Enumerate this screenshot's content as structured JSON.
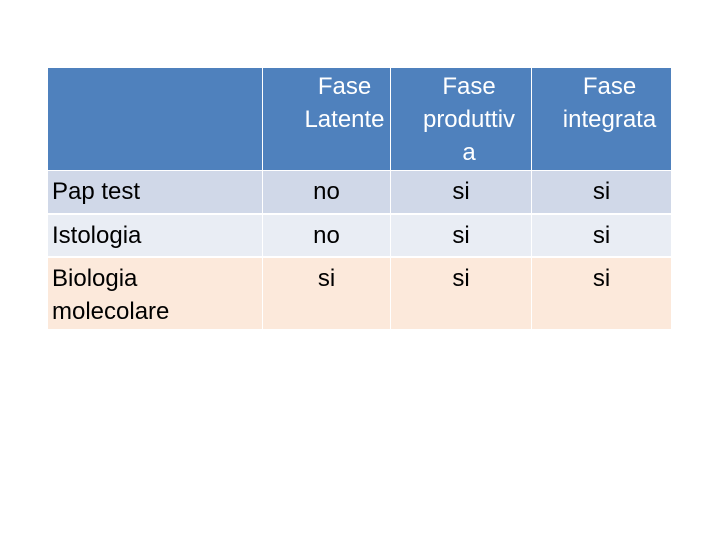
{
  "table": {
    "headers": [
      "",
      "Fase Latente",
      "Fase produttiv a",
      "Fase integrata"
    ],
    "header_lines": [
      [],
      [
        "Fase",
        "Latente"
      ],
      [
        "Fase",
        "produttiv",
        "a"
      ],
      [
        "Fase",
        "integrata"
      ]
    ],
    "rows": [
      {
        "label": "Pap test",
        "values": [
          "no",
          "si",
          "si"
        ]
      },
      {
        "label": "Istologia",
        "values": [
          "no",
          "si",
          "si"
        ]
      },
      {
        "label_lines": [
          "Biologia",
          "molecolare"
        ],
        "values": [
          "si",
          "si",
          "si"
        ]
      }
    ],
    "colors": {
      "header_bg": "#4f81bd",
      "row1_bg": "#d0d8e8",
      "row2_bg": "#e9edf4",
      "row3_bg": "#fce9db"
    }
  }
}
